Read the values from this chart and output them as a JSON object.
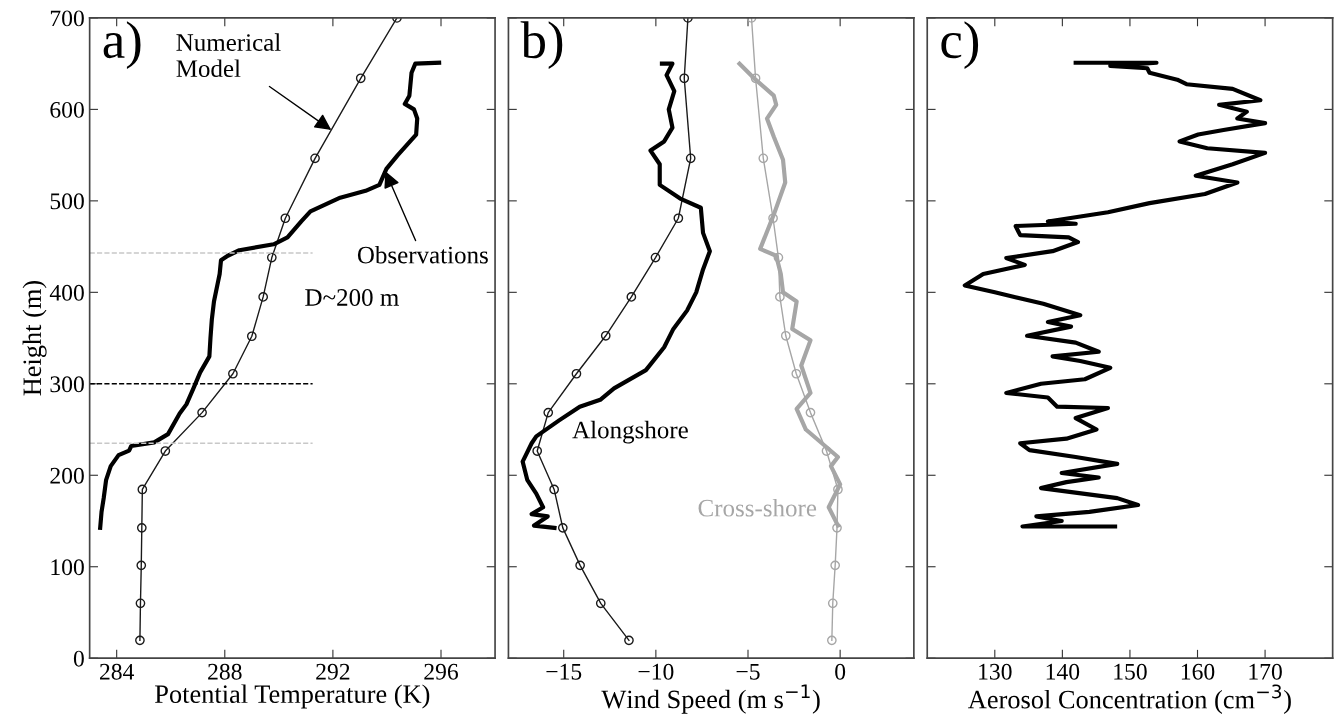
{
  "chart_data": [
    {
      "type": "line",
      "xlabel": "Potential Temperature (K)",
      "ylabel": "Height (m)",
      "xlim": [
        283,
        298
      ],
      "xticks": [
        284,
        288,
        292,
        296
      ],
      "ylim": [
        0,
        700
      ],
      "yticks": [
        0,
        100,
        200,
        300,
        400,
        500,
        600,
        700
      ],
      "grid": false,
      "legend": false,
      "annotations": [
        "a)",
        {
          "text": "Numerical\nModel",
          "x": 291.94,
          "y": 577.5
        },
        {
          "text": "Observations",
          "x": 293.94,
          "y": 532.5
        },
        "D~200 m"
      ],
      "ref_lines": [
        {
          "axis": "y",
          "value": 443,
          "color": "#c8c8c8",
          "line_style": "dashed"
        },
        {
          "axis": "y",
          "value": 300,
          "color": "#000000",
          "line_style": "dashed"
        },
        {
          "axis": "y",
          "value": 235,
          "color": "#c8c8c8",
          "line_style": "dashed"
        }
      ],
      "series": [
        {
          "color": "#1a1a1a",
          "marker": "circle",
          "x": [
            294.37,
            293.03,
            291.34,
            290.24,
            289.74,
            289.42,
            289.0,
            288.3,
            287.16,
            285.8,
            284.95,
            284.93,
            284.91,
            284.88,
            284.86
          ],
          "values": [
            700,
            634,
            546.5,
            481,
            438,
            395,
            352,
            311,
            268.5,
            226.5,
            184.5,
            142.5,
            101.5,
            60,
            19.5
          ]
        },
        {
          "color": "#000000",
          "marker": "none",
          "x": [
            283.39,
            283.44,
            283.52,
            283.61,
            283.78,
            284.07,
            284.46,
            284.54,
            285.39,
            285.9,
            286.33,
            286.58,
            286.84,
            287.09,
            287.43,
            287.47,
            287.52,
            287.6,
            287.74,
            287.81,
            287.86,
            288.11,
            288.54,
            289.81,
            290.32,
            290.83,
            291.17,
            292.27,
            293.21,
            293.72,
            293.98,
            294.4,
            295.08,
            295.12,
            295.0,
            294.66,
            294.83,
            294.91,
            295.05,
            295.93
          ],
          "values": [
            142.5,
            160,
            175,
            195,
            210,
            222,
            227,
            232,
            236,
            245,
            267.5,
            277.5,
            295,
            312.5,
            330,
            350,
            370,
            390,
            410,
            420,
            435,
            440,
            446,
            452.5,
            460,
            477.5,
            488.5,
            503.5,
            511,
            517.5,
            535,
            550,
            572.5,
            590,
            600,
            606,
            615,
            640,
            650,
            651
          ]
        }
      ]
    },
    {
      "type": "line",
      "xlabel": "Wind Speed (m s$^{−1}$)",
      "xlim": [
        -18,
        4
      ],
      "xticks": [
        -15,
        -10,
        -5,
        0
      ],
      "ylim": [
        0,
        700
      ],
      "yticks": [
        0,
        100,
        200,
        300,
        400,
        500,
        600,
        700
      ],
      "tick_labels": "x",
      "grid": false,
      "legend": false,
      "annotations": [
        "b)"
      ],
      "series": [
        {
          "color": "#1a1a1a",
          "marker": "circle",
          "x": [
            -8.26,
            -8.46,
            -8.11,
            -8.78,
            -10.02,
            -11.33,
            -12.72,
            -14.31,
            -15.84,
            -16.44,
            -15.52,
            -15.05,
            -14.11,
            -12.99,
            -11.46
          ],
          "values": [
            700,
            634,
            546.5,
            481,
            438,
            395,
            352.5,
            311,
            268.5,
            226.5,
            184.5,
            142.5,
            101.5,
            60,
            19.5
          ]
        },
        {
          "color": "#a6a6a6",
          "marker": "circle",
          "x": [
            -4.81,
            -4.59,
            -4.17,
            -3.64,
            -3.35,
            -3.27,
            -2.95,
            -2.38,
            -1.61,
            -0.74,
            -0.12,
            -0.17,
            -0.27,
            -0.4,
            -0.45
          ],
          "values": [
            700,
            634,
            546.5,
            481,
            438,
            395,
            352.5,
            311,
            268.5,
            226.5,
            184.5,
            142.5,
            101.5,
            60,
            19.5
          ]
        },
        {
          "name": "Alongshore",
          "color": "#000000",
          "marker": "none",
          "x": [
            -9.67,
            -9.1,
            -9.42,
            -9.0,
            -9.3,
            -9.1,
            -9.55,
            -10.29,
            -9.79,
            -9.79,
            -8.68,
            -7.56,
            -7.44,
            -7.07,
            -7.44,
            -7.81,
            -8.31,
            -9.05,
            -9.55,
            -10.54,
            -12.27,
            -13.02,
            -14.13,
            -15.25,
            -16.49,
            -16.74,
            -17.23,
            -16.98,
            -16.49,
            -16.12,
            -16.74,
            -15.87,
            -16.61,
            -15.5
          ],
          "values": [
            650,
            650,
            637.5,
            620,
            600,
            580,
            565,
            555,
            540,
            517.5,
            502.5,
            492.5,
            465,
            445,
            425,
            400,
            380,
            360,
            340,
            315,
            295,
            282.5,
            275,
            260,
            242.5,
            235,
            215,
            195,
            180,
            165,
            157.5,
            155,
            145,
            142.5
          ]
        },
        {
          "name": "Cross-shore",
          "color": "#a6a6a6",
          "marker": "none",
          "x": [
            -5.46,
            -4.59,
            -3.6,
            -3.47,
            -3.97,
            -3.6,
            -3.1,
            -2.98,
            -3.6,
            -4.34,
            -3.47,
            -3.22,
            -3.1,
            -2.36,
            -2.6,
            -1.61,
            -2.11,
            -1.61,
            -2.36,
            -1.86,
            -0.99,
            -0.12,
            -0.5,
            0.0,
            -0.62,
            -0.12
          ],
          "values": [
            650,
            632.5,
            615,
            605,
            590,
            570,
            545,
            520,
            485,
            447.5,
            440,
            420,
            400,
            390,
            360,
            347.5,
            320,
            290,
            272.5,
            250,
            235,
            220,
            210,
            190,
            165,
            145
          ]
        }
      ]
    },
    {
      "type": "line",
      "xlabel": "Aerosol Concentration (cm$^{−3}$)",
      "xlim": [
        120,
        180
      ],
      "xticks": [
        130,
        140,
        150,
        160,
        170
      ],
      "ylim": [
        0,
        700
      ],
      "yticks": [
        0,
        100,
        200,
        300,
        400,
        500,
        600,
        700
      ],
      "tick_labels": "x",
      "grid": false,
      "legend": false,
      "annotations": [
        "c)"
      ],
      "series": [
        {
          "color": "#000000",
          "marker": "none",
          "x": [
            141.97,
            153.93,
            147.09,
            152.56,
            152.9,
            157.0,
            158.38,
            165.2,
            169.3,
            163.2,
            167.3,
            165.9,
            170.0,
            163.85,
            160.1,
            157.35,
            161.45,
            170.0,
            165.2,
            159.74,
            165.9,
            161.1,
            152.9,
            146.75,
            137.86,
            141.97,
            133.08,
            133.76,
            140.94,
            142.31,
            138.55,
            131.7,
            134.44,
            128.29,
            125.56,
            130.0,
            137.18,
            142.65,
            137.86,
            141.28,
            134.78,
            141.97,
            145.38,
            138.55,
            142.65,
            147.09,
            143.33,
            136.84,
            131.7,
            137.86,
            139.23,
            146.75,
            141.97,
            145.05,
            140.6,
            133.76,
            135.13,
            141.97,
            148.12,
            139.9,
            145.38,
            140.6,
            136.84,
            148.12,
            151.2,
            144.0,
            136.15,
            139.9,
            134.1,
            147.8
          ],
          "values": [
            651,
            651,
            647.5,
            645,
            640,
            632.5,
            627.5,
            622.5,
            610,
            605,
            597.5,
            590,
            585,
            577.5,
            572.5,
            565,
            557.5,
            552.5,
            540,
            527.5,
            520,
            507.5,
            497.5,
            487.5,
            477.5,
            475,
            472.5,
            462.5,
            460,
            455,
            445,
            437.5,
            430,
            420,
            407.5,
            400,
            387.5,
            375,
            367.5,
            362.5,
            352.5,
            345,
            335,
            330,
            325,
            317.5,
            305,
            300,
            290,
            285,
            275,
            273.5,
            262.5,
            250,
            240,
            235,
            227.5,
            220,
            212.5,
            202.5,
            197.5,
            192.5,
            186,
            175,
            167.5,
            160,
            155,
            150,
            144,
            144
          ]
        }
      ]
    }
  ]
}
